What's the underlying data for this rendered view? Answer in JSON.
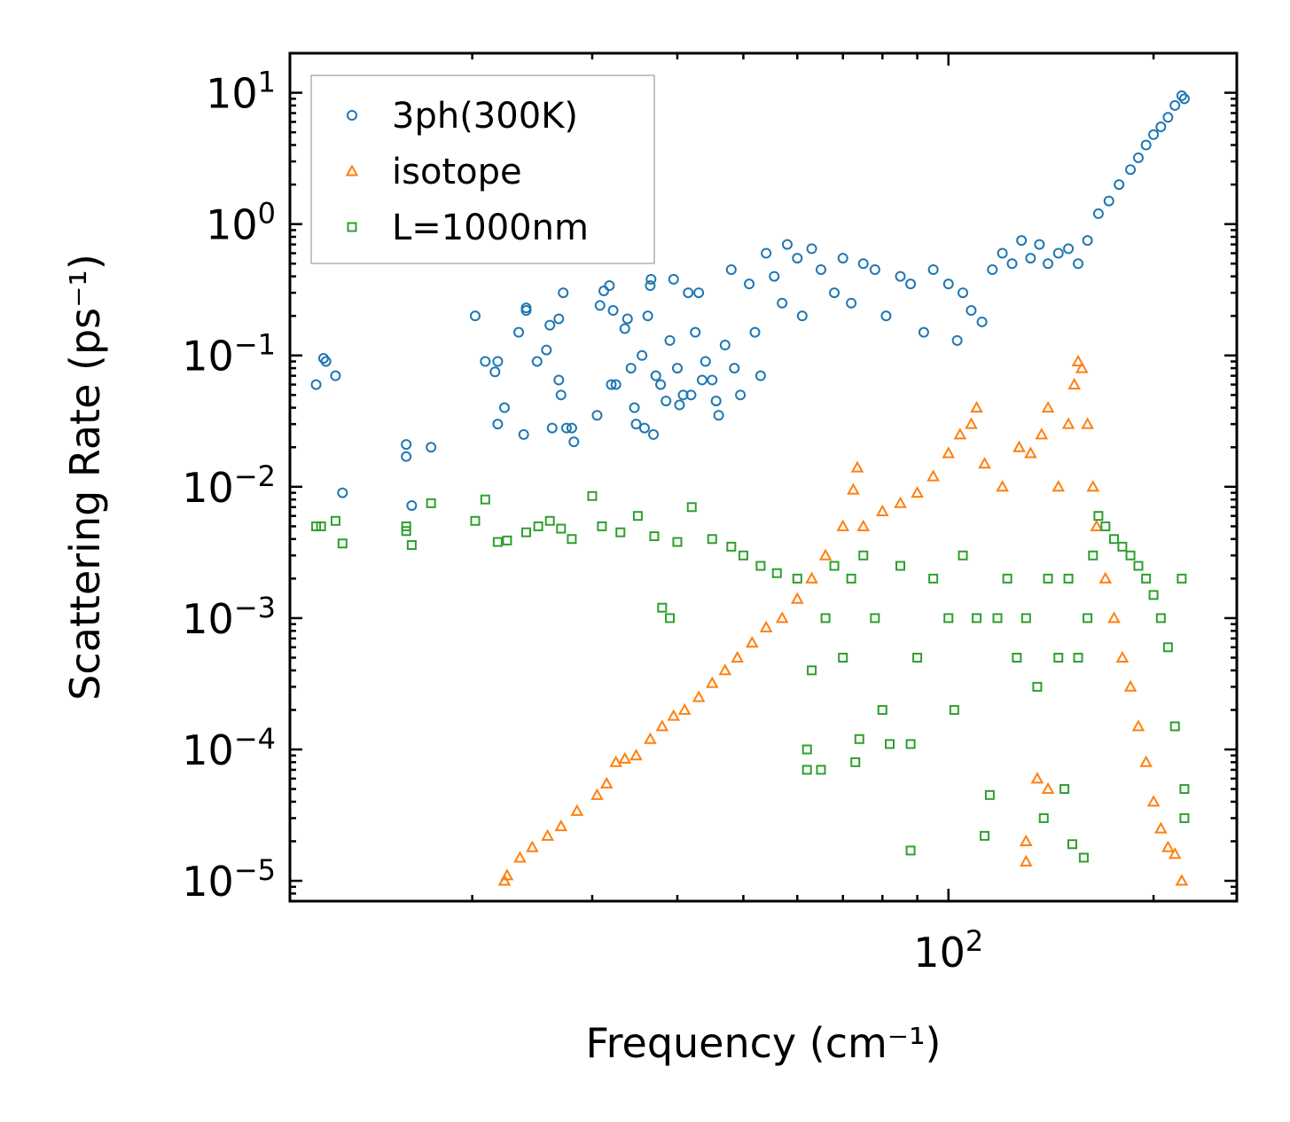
{
  "chart_data": {
    "type": "scatter",
    "title": "",
    "xlabel": "Frequency (cm⁻¹)",
    "ylabel": "Scattering Rate (ps⁻¹)",
    "xscale": "log",
    "yscale": "log",
    "xlim": [
      10.8,
      265
    ],
    "ylim": [
      7e-06,
      20
    ],
    "x_ticks": [
      {
        "value": 100,
        "base": "10",
        "exp": "2"
      }
    ],
    "y_ticks": [
      {
        "value": 10,
        "base": "10",
        "exp": "1"
      },
      {
        "value": 1,
        "base": "10",
        "exp": "0"
      },
      {
        "value": 0.1,
        "base": "10",
        "exp": "−1"
      },
      {
        "value": 0.01,
        "base": "10",
        "exp": "−2"
      },
      {
        "value": 0.001,
        "base": "10",
        "exp": "−3"
      },
      {
        "value": 0.0001,
        "base": "10",
        "exp": "−4"
      },
      {
        "value": 1e-05,
        "base": "10",
        "exp": "−5"
      }
    ],
    "legend_position": "top-left",
    "series": [
      {
        "name": "3ph(300K)",
        "marker": "circle",
        "color": "#1f77b4",
        "points": [
          [
            11.8,
            0.06
          ],
          [
            12.1,
            0.095
          ],
          [
            12.2,
            0.09
          ],
          [
            12.6,
            0.07
          ],
          [
            12.9,
            0.009
          ],
          [
            16.0,
            0.021
          ],
          [
            16.0,
            0.017
          ],
          [
            16.3,
            0.0072
          ],
          [
            17.4,
            0.02
          ],
          [
            20.2,
            0.2
          ],
          [
            20.9,
            0.09
          ],
          [
            21.6,
            0.075
          ],
          [
            21.8,
            0.09
          ],
          [
            21.8,
            0.03
          ],
          [
            22.3,
            0.04
          ],
          [
            23.4,
            0.15
          ],
          [
            23.8,
            0.025
          ],
          [
            24.0,
            0.23
          ],
          [
            24.0,
            0.22
          ],
          [
            24.9,
            0.09
          ],
          [
            25.7,
            0.11
          ],
          [
            26.0,
            0.17
          ],
          [
            26.2,
            0.028
          ],
          [
            26.8,
            0.19
          ],
          [
            26.8,
            0.065
          ],
          [
            27.0,
            0.05
          ],
          [
            27.2,
            0.3
          ],
          [
            27.5,
            0.028
          ],
          [
            28.0,
            0.028
          ],
          [
            28.2,
            0.022
          ],
          [
            30.5,
            0.035
          ],
          [
            30.8,
            0.24
          ],
          [
            31.2,
            0.31
          ],
          [
            31.8,
            0.34
          ],
          [
            32.2,
            0.22
          ],
          [
            32.0,
            0.06
          ],
          [
            32.5,
            0.06
          ],
          [
            33.5,
            0.16
          ],
          [
            33.8,
            0.19
          ],
          [
            34.2,
            0.08
          ],
          [
            34.6,
            0.04
          ],
          [
            34.8,
            0.03
          ],
          [
            35.5,
            0.1
          ],
          [
            35.8,
            0.028
          ],
          [
            36.5,
            0.34
          ],
          [
            36.6,
            0.38
          ],
          [
            36.9,
            0.025
          ],
          [
            36.2,
            0.2
          ],
          [
            37.2,
            0.07
          ],
          [
            37.8,
            0.06
          ],
          [
            38.5,
            0.045
          ],
          [
            39.0,
            0.13
          ],
          [
            39.5,
            0.38
          ],
          [
            40.0,
            0.08
          ],
          [
            40.3,
            0.042
          ],
          [
            40.8,
            0.05
          ],
          [
            41.5,
            0.3
          ],
          [
            41.9,
            0.05
          ],
          [
            42.5,
            0.15
          ],
          [
            43.0,
            0.3
          ],
          [
            43.5,
            0.065
          ],
          [
            44.0,
            0.09
          ],
          [
            45.0,
            0.065
          ],
          [
            45.6,
            0.045
          ],
          [
            46.0,
            0.035
          ],
          [
            47.0,
            0.12
          ],
          [
            48.0,
            0.45
          ],
          [
            48.5,
            0.08
          ],
          [
            49.5,
            0.05
          ],
          [
            51.0,
            0.35
          ],
          [
            52.0,
            0.15
          ],
          [
            53.0,
            0.07
          ],
          [
            54.0,
            0.6
          ],
          [
            55.5,
            0.4
          ],
          [
            57.0,
            0.25
          ],
          [
            58.0,
            0.7
          ],
          [
            60.0,
            0.55
          ],
          [
            61.0,
            0.2
          ],
          [
            63.0,
            0.65
          ],
          [
            65.0,
            0.45
          ],
          [
            68.0,
            0.3
          ],
          [
            70.0,
            0.55
          ],
          [
            72.0,
            0.25
          ],
          [
            75.0,
            0.5
          ],
          [
            78.0,
            0.45
          ],
          [
            81.0,
            0.2
          ],
          [
            85.0,
            0.4
          ],
          [
            88.0,
            0.35
          ],
          [
            92.0,
            0.15
          ],
          [
            95.0,
            0.45
          ],
          [
            100.0,
            0.35
          ],
          [
            103.0,
            0.13
          ],
          [
            105.0,
            0.3
          ],
          [
            108.0,
            0.22
          ],
          [
            112.0,
            0.18
          ],
          [
            116.0,
            0.45
          ],
          [
            120.0,
            0.6
          ],
          [
            124.0,
            0.5
          ],
          [
            128.0,
            0.75
          ],
          [
            132.0,
            0.55
          ],
          [
            136.0,
            0.7
          ],
          [
            140.0,
            0.5
          ],
          [
            145.0,
            0.6
          ],
          [
            150.0,
            0.65
          ],
          [
            155.0,
            0.5
          ],
          [
            160.0,
            0.75
          ],
          [
            166.0,
            1.2
          ],
          [
            172.0,
            1.5
          ],
          [
            178.0,
            2.0
          ],
          [
            185.0,
            2.6
          ],
          [
            190.0,
            3.2
          ],
          [
            195.0,
            4.0
          ],
          [
            200.0,
            4.8
          ],
          [
            205.0,
            5.5
          ],
          [
            210.0,
            6.5
          ],
          [
            215.0,
            8.0
          ],
          [
            220.0,
            9.5
          ],
          [
            222.0,
            9.0
          ]
        ]
      },
      {
        "name": "isotope",
        "marker": "triangle",
        "color": "#ff7f0e",
        "points": [
          [
            22.3,
            1e-05
          ],
          [
            22.5,
            1.1e-05
          ],
          [
            23.5,
            1.5e-05
          ],
          [
            24.5,
            1.8e-05
          ],
          [
            25.8,
            2.2e-05
          ],
          [
            27.0,
            2.6e-05
          ],
          [
            28.5,
            3.4e-05
          ],
          [
            30.5,
            4.5e-05
          ],
          [
            31.5,
            5.5e-05
          ],
          [
            32.5,
            8e-05
          ],
          [
            33.5,
            8.5e-05
          ],
          [
            34.8,
            9e-05
          ],
          [
            36.5,
            0.00012
          ],
          [
            38.0,
            0.00015
          ],
          [
            39.5,
            0.00018
          ],
          [
            41.0,
            0.0002
          ],
          [
            43.0,
            0.00025
          ],
          [
            45.0,
            0.00032
          ],
          [
            47.0,
            0.0004
          ],
          [
            49.0,
            0.0005
          ],
          [
            51.5,
            0.00065
          ],
          [
            54.0,
            0.00085
          ],
          [
            57.0,
            0.001
          ],
          [
            60.0,
            0.0014
          ],
          [
            63.0,
            0.002
          ],
          [
            66.0,
            0.003
          ],
          [
            70.0,
            0.005
          ],
          [
            72.5,
            0.0095
          ],
          [
            73.5,
            0.014
          ],
          [
            75.0,
            0.005
          ],
          [
            80.0,
            0.0065
          ],
          [
            85.0,
            0.0075
          ],
          [
            90.0,
            0.009
          ],
          [
            95.0,
            0.012
          ],
          [
            100.0,
            0.018
          ],
          [
            104.0,
            0.025
          ],
          [
            108.0,
            0.03
          ],
          [
            110.0,
            0.04
          ],
          [
            113.0,
            0.015
          ],
          [
            120.0,
            0.01
          ],
          [
            127.0,
            0.02
          ],
          [
            132.0,
            0.018
          ],
          [
            137.0,
            0.025
          ],
          [
            140.0,
            0.04
          ],
          [
            145.0,
            0.01
          ],
          [
            150.0,
            0.03
          ],
          [
            153.0,
            0.06
          ],
          [
            155.0,
            0.09
          ],
          [
            157.0,
            0.08
          ],
          [
            160.0,
            0.03
          ],
          [
            163.0,
            0.01
          ],
          [
            165.0,
            0.005
          ],
          [
            170.0,
            0.002
          ],
          [
            175.0,
            0.001
          ],
          [
            180.0,
            0.0005
          ],
          [
            185.0,
            0.0003
          ],
          [
            190.0,
            0.00015
          ],
          [
            195.0,
            8e-05
          ],
          [
            200.0,
            4e-05
          ],
          [
            205.0,
            2.5e-05
          ],
          [
            210.0,
            1.8e-05
          ],
          [
            215.0,
            1.6e-05
          ],
          [
            220.0,
            1e-05
          ],
          [
            130.0,
            2e-05
          ],
          [
            130.0,
            1.4e-05
          ],
          [
            135.0,
            6e-05
          ],
          [
            140.0,
            5e-05
          ]
        ]
      },
      {
        "name": "L=1000nm",
        "marker": "square",
        "color": "#2ca02c",
        "points": [
          [
            11.8,
            0.005
          ],
          [
            12.0,
            0.005
          ],
          [
            12.6,
            0.0055
          ],
          [
            12.9,
            0.0037
          ],
          [
            16.0,
            0.005
          ],
          [
            16.0,
            0.0046
          ],
          [
            16.3,
            0.0036
          ],
          [
            17.4,
            0.0075
          ],
          [
            20.2,
            0.0055
          ],
          [
            20.9,
            0.008
          ],
          [
            21.8,
            0.0038
          ],
          [
            22.5,
            0.0039
          ],
          [
            24.0,
            0.0045
          ],
          [
            25.0,
            0.005
          ],
          [
            26.0,
            0.0055
          ],
          [
            27.0,
            0.0048
          ],
          [
            28.0,
            0.004
          ],
          [
            30.0,
            0.0085
          ],
          [
            31.0,
            0.005
          ],
          [
            33.0,
            0.0045
          ],
          [
            35.0,
            0.006
          ],
          [
            37.0,
            0.0042
          ],
          [
            38.0,
            0.0012
          ],
          [
            39.0,
            0.001
          ],
          [
            40.0,
            0.0038
          ],
          [
            42.0,
            0.007
          ],
          [
            45.0,
            0.004
          ],
          [
            48.0,
            0.0035
          ],
          [
            50.0,
            0.003
          ],
          [
            53.0,
            0.0025
          ],
          [
            56.0,
            0.0022
          ],
          [
            60.0,
            0.002
          ],
          [
            62.0,
            0.0001
          ],
          [
            62.0,
            7e-05
          ],
          [
            63.0,
            0.0004
          ],
          [
            65.0,
            7e-05
          ],
          [
            66.0,
            0.001
          ],
          [
            68.0,
            0.0025
          ],
          [
            70.0,
            0.0005
          ],
          [
            72.0,
            0.002
          ],
          [
            73.0,
            8e-05
          ],
          [
            74.0,
            0.00012
          ],
          [
            75.0,
            0.003
          ],
          [
            78.0,
            0.001
          ],
          [
            80.0,
            0.0002
          ],
          [
            82.0,
            0.00011
          ],
          [
            85.0,
            0.0025
          ],
          [
            88.0,
            1.7e-05
          ],
          [
            88.0,
            0.00011
          ],
          [
            90.0,
            0.0005
          ],
          [
            95.0,
            0.002
          ],
          [
            100.0,
            0.001
          ],
          [
            102.0,
            0.0002
          ],
          [
            105.0,
            0.003
          ],
          [
            110.0,
            0.001
          ],
          [
            113.0,
            2.2e-05
          ],
          [
            115.0,
            4.5e-05
          ],
          [
            118.0,
            0.001
          ],
          [
            122.0,
            0.002
          ],
          [
            126.0,
            0.0005
          ],
          [
            130.0,
            0.001
          ],
          [
            135.0,
            0.0003
          ],
          [
            138.0,
            3e-05
          ],
          [
            140.0,
            0.002
          ],
          [
            145.0,
            0.0005
          ],
          [
            148.0,
            5e-05
          ],
          [
            150.0,
            0.002
          ],
          [
            152.0,
            1.9e-05
          ],
          [
            155.0,
            0.0005
          ],
          [
            158.0,
            1.5e-05
          ],
          [
            160.0,
            0.001
          ],
          [
            163.0,
            0.003
          ],
          [
            166.0,
            0.006
          ],
          [
            170.0,
            0.005
          ],
          [
            175.0,
            0.004
          ],
          [
            180.0,
            0.0035
          ],
          [
            185.0,
            0.003
          ],
          [
            190.0,
            0.0025
          ],
          [
            195.0,
            0.002
          ],
          [
            200.0,
            0.0015
          ],
          [
            205.0,
            0.001
          ],
          [
            210.0,
            0.0006
          ],
          [
            215.0,
            0.00015
          ],
          [
            220.0,
            0.002
          ],
          [
            222.0,
            5e-05
          ],
          [
            222.0,
            3e-05
          ]
        ]
      }
    ]
  },
  "colors": {
    "series_3ph": "#1f77b4",
    "series_isotope": "#ff7f0e",
    "series_boundary": "#2ca02c"
  }
}
